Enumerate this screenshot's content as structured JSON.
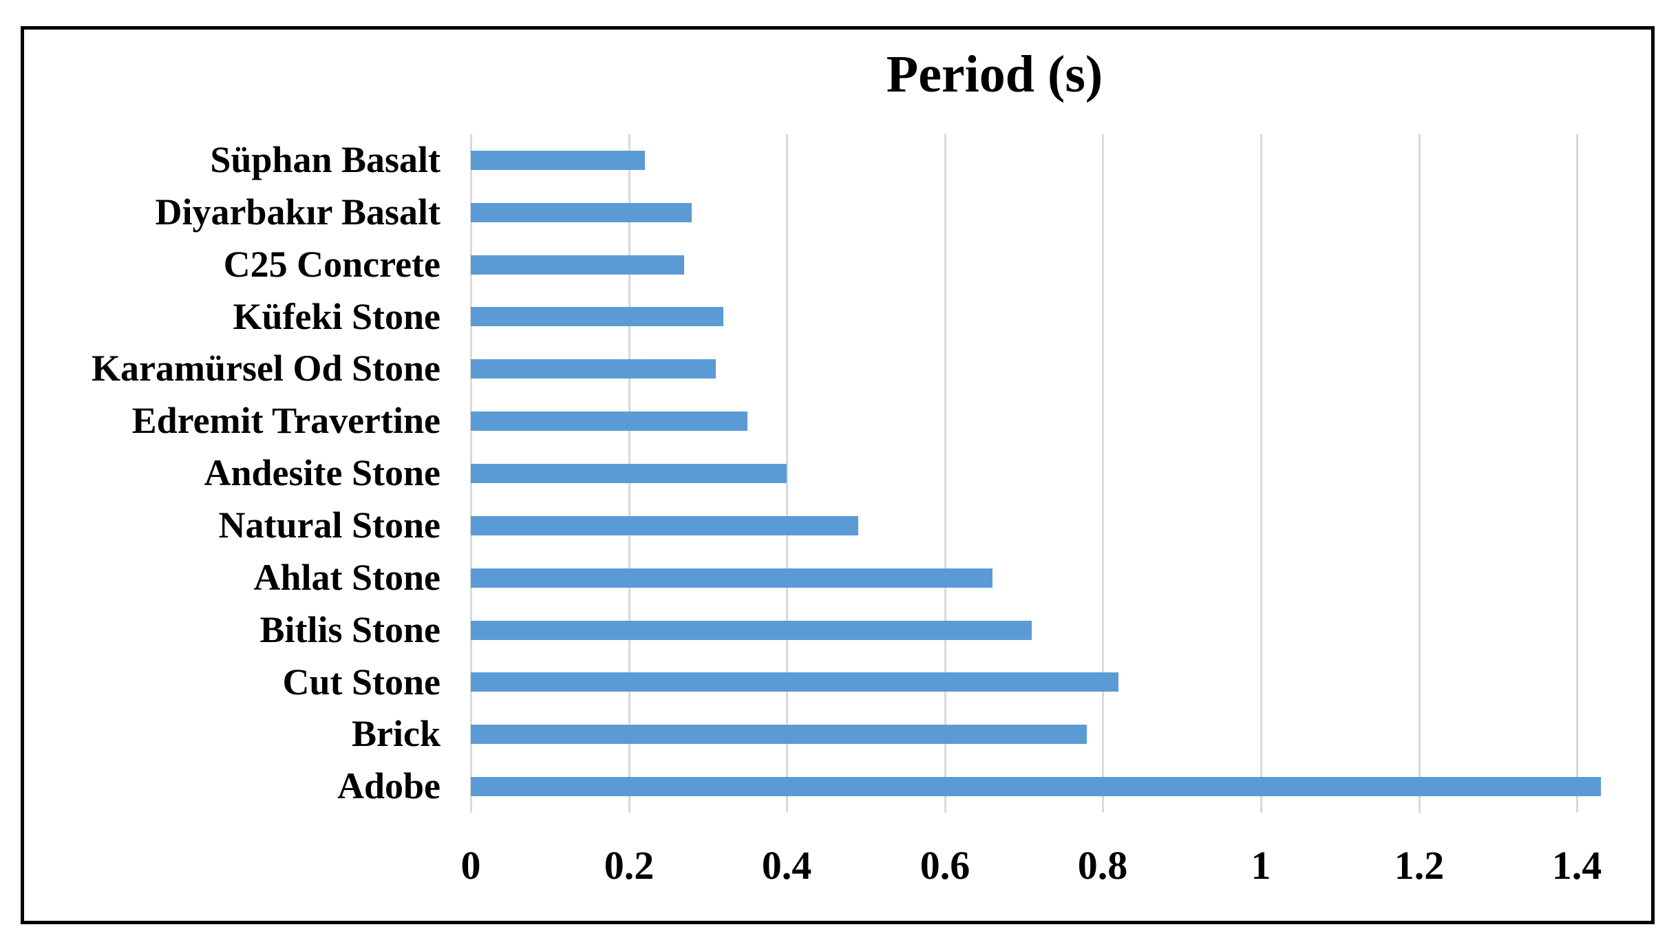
{
  "chart_data": {
    "type": "bar",
    "orientation": "horizontal",
    "title": "Period (s)",
    "categories": [
      "Süphan Basalt",
      "Diyarbakır Basalt",
      "C25 Concrete",
      "Küfeki Stone",
      "Karamürsel Od Stone",
      "Edremit Travertine",
      "Andesite Stone",
      "Natural Stone",
      "Ahlat Stone",
      "Bitlis Stone",
      "Cut Stone",
      "Brick",
      "Adobe"
    ],
    "values": [
      0.22,
      0.28,
      0.27,
      0.32,
      0.31,
      0.35,
      0.4,
      0.49,
      0.66,
      0.71,
      0.82,
      0.78,
      1.43
    ],
    "xlabel": "",
    "ylabel": "",
    "xlim": [
      0,
      1.485
    ],
    "x_tick_labels": [
      "0",
      "0.2",
      "0.4",
      "0.6",
      "0.8",
      "1",
      "1.2",
      "1.4"
    ],
    "x_tick_values": [
      0,
      0.2,
      0.4,
      0.6,
      0.8,
      1.0,
      1.2,
      1.4
    ],
    "grid": "vertical-major-only",
    "legend": "none",
    "bar_color": "#5B9BD5",
    "gridline_color": "#D9D9D9",
    "frame_border_color": "#000000",
    "background_color": "#FFFFFF",
    "text_color": "#000000"
  }
}
